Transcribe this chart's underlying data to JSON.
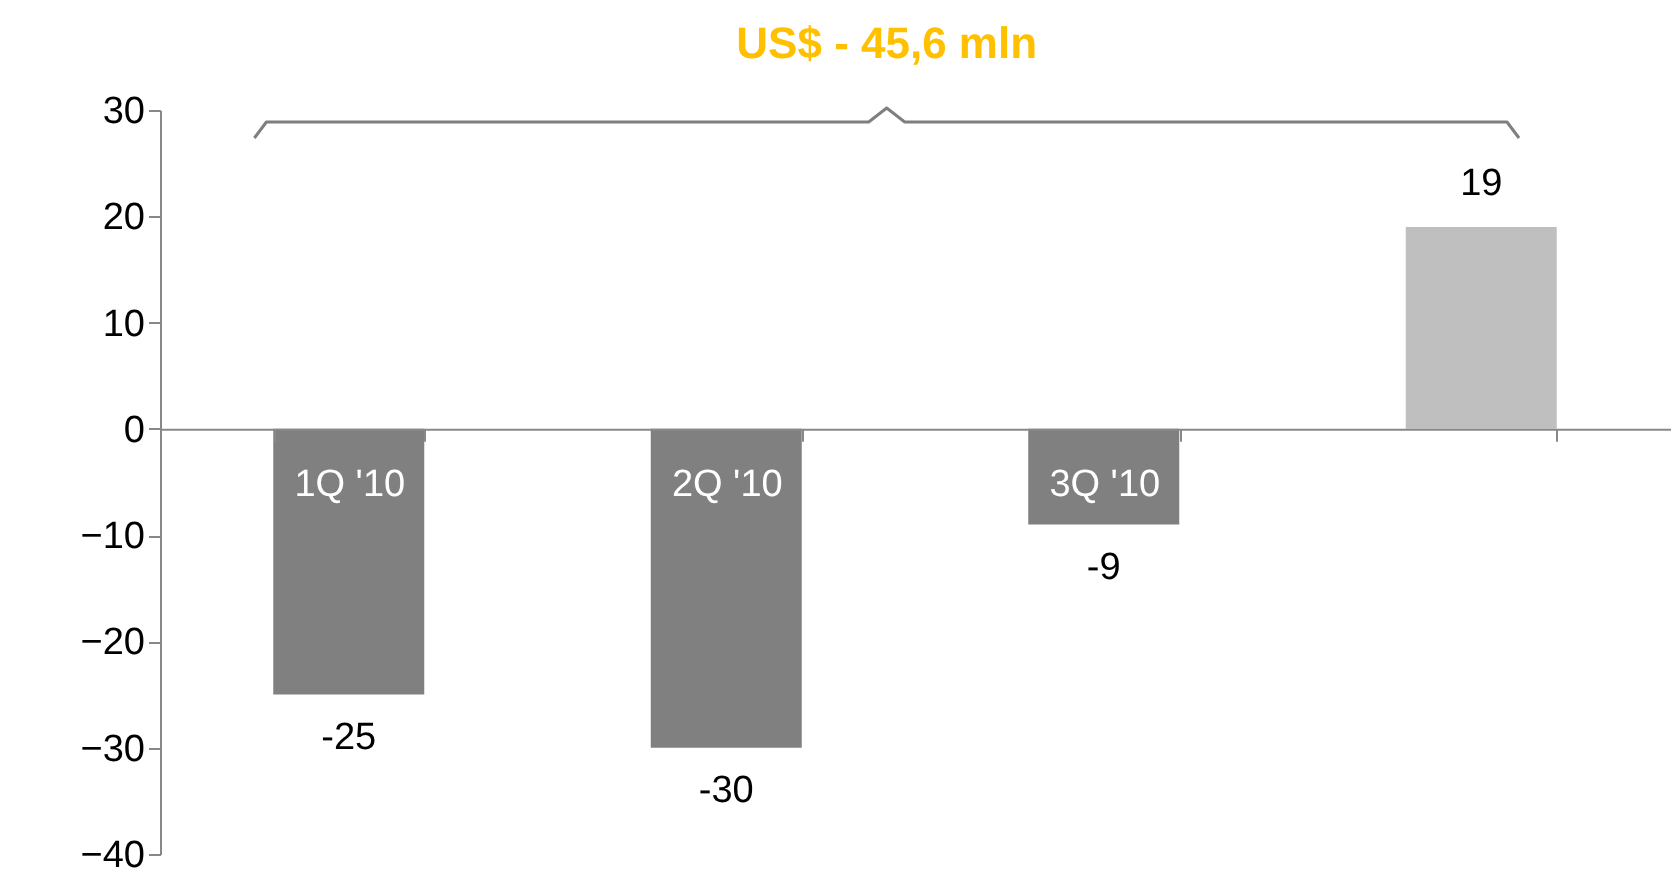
{
  "chart_data": {
    "type": "bar",
    "categories": [
      "1Q '10",
      "2Q '10",
      "3Q '10",
      null
    ],
    "values": [
      -25,
      -30,
      -9,
      19
    ],
    "colors": [
      "#808080",
      "#808080",
      "#808080",
      "#bfbfbf"
    ],
    "ylim": [
      -40,
      30
    ],
    "yticks": [
      -40,
      -30,
      -20,
      -10,
      0,
      10,
      20,
      30
    ],
    "data_labels": true,
    "annotations": [
      "US$ - 45,6 mln"
    ],
    "grid": false
  }
}
